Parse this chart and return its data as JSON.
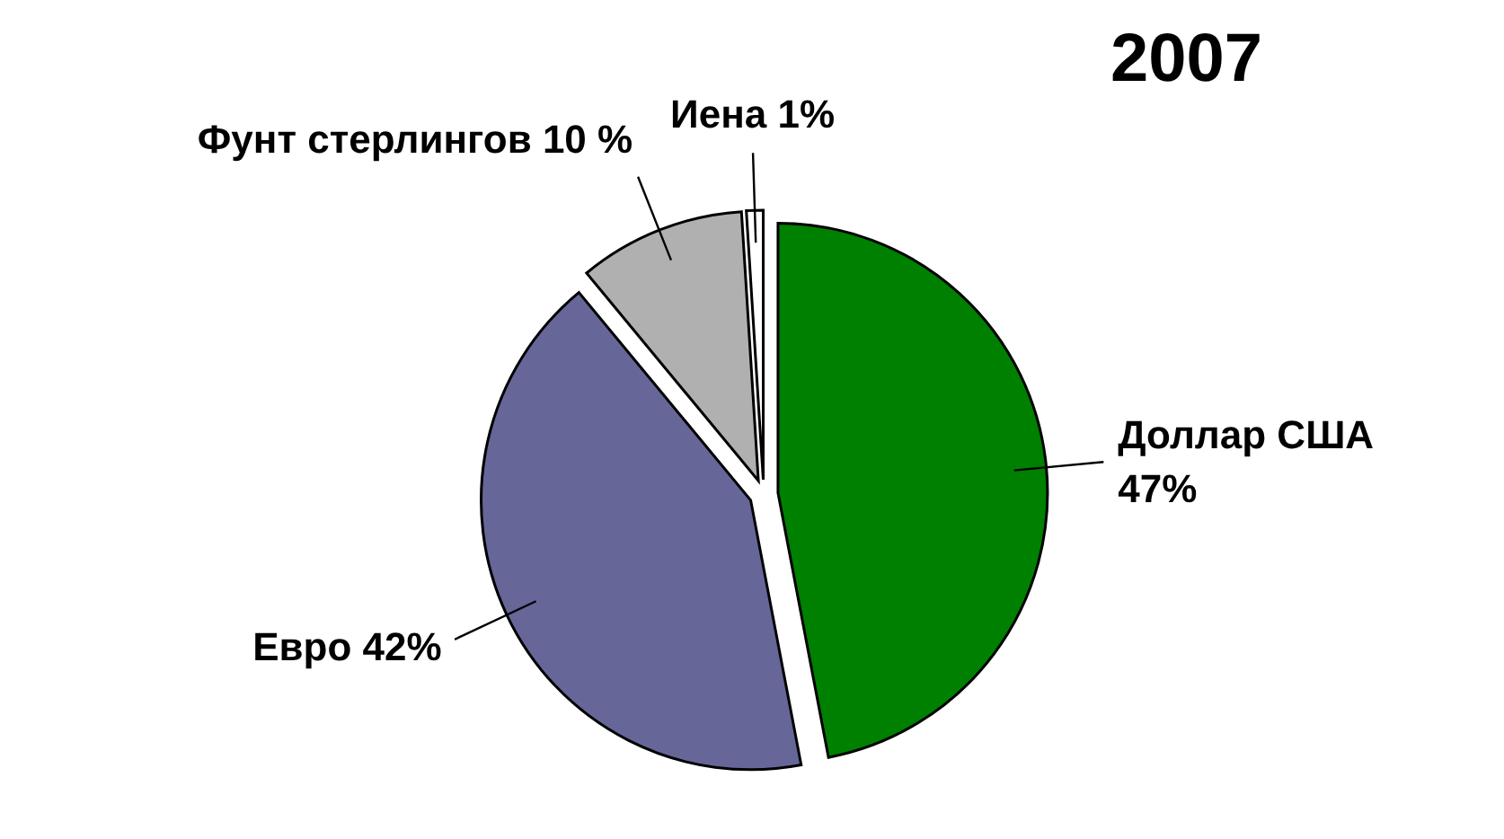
{
  "chart_data": {
    "type": "pie",
    "title": "2007",
    "categories": [
      "Доллар США",
      "Евро",
      "Фунт стерлингов",
      "Иена"
    ],
    "values": [
      47,
      42,
      10,
      1
    ],
    "value_labels": [
      "47%",
      "42%",
      "10 %",
      "1%"
    ],
    "colors": [
      "#008000",
      "#666699",
      "#b0b0b0",
      "#ffffff"
    ],
    "legend": false
  }
}
